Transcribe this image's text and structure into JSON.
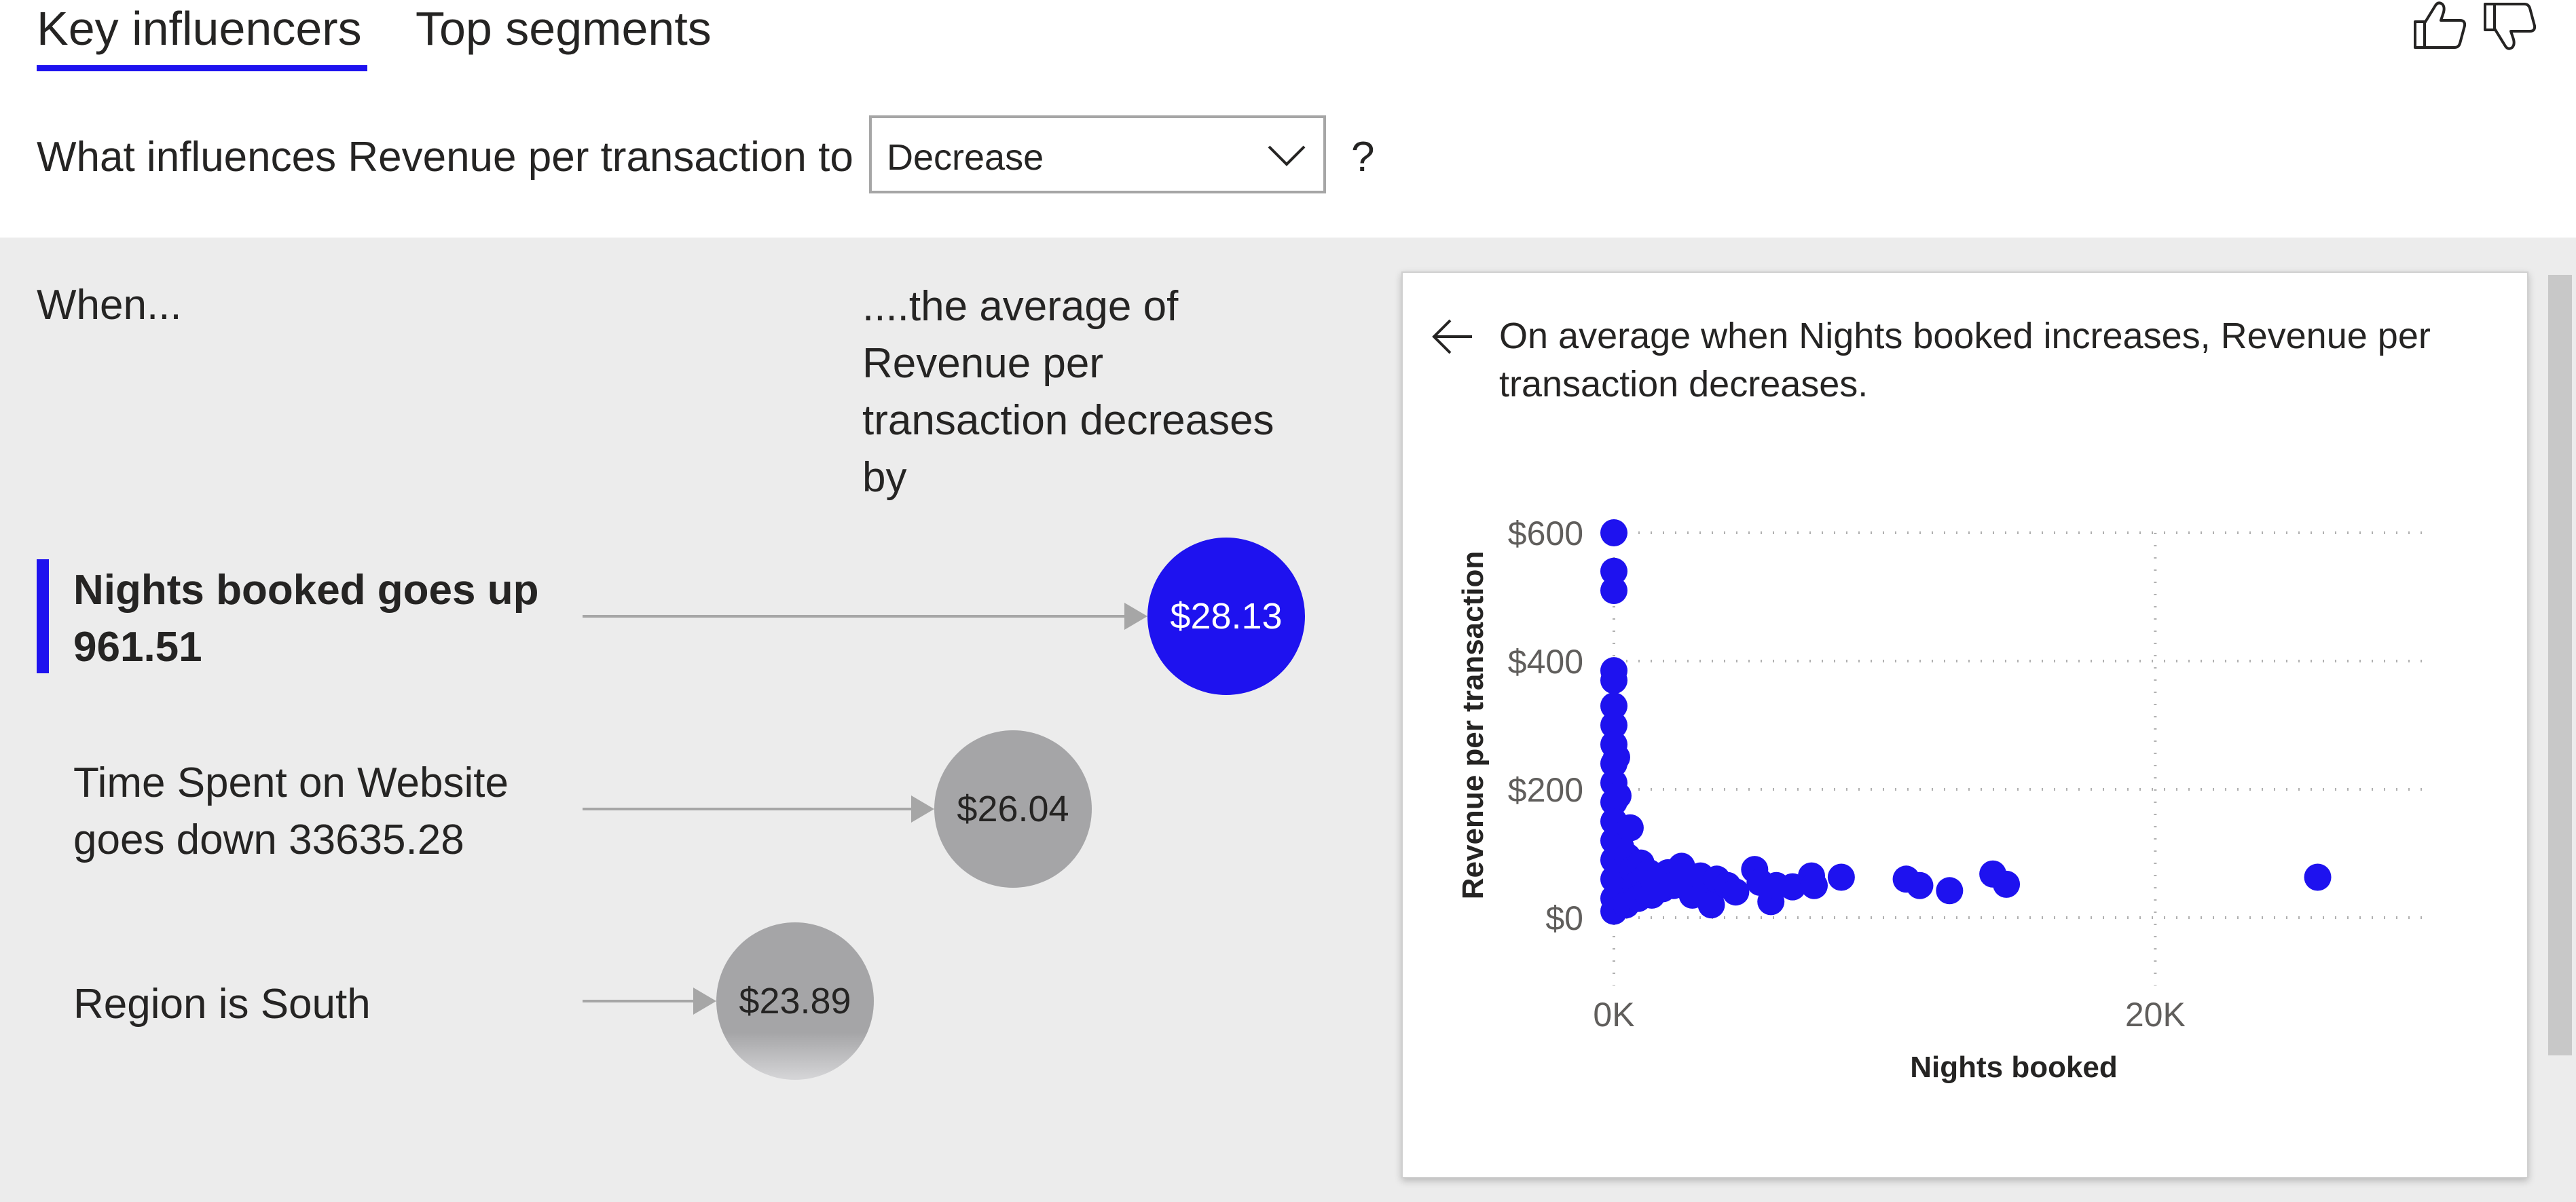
{
  "tabs": {
    "key_influencers": "Key influencers",
    "top_segments": "Top segments"
  },
  "feedback": {
    "thumbs_up_icon": "thumbs-up-icon",
    "thumbs_down_icon": "thumbs-down-icon"
  },
  "question": {
    "prefix": "What influences Revenue per transaction to",
    "selected": "Decrease",
    "suffix": "?"
  },
  "left_panel": {
    "when_heading": "When...",
    "avg_heading": "....the average of Revenue per transaction decreases by"
  },
  "influencers": [
    {
      "label": "Nights booked goes up 961.51",
      "value": "$28.13",
      "amount": 28.13,
      "selected": true
    },
    {
      "label": "Time Spent on Website goes down 33635.28",
      "value": "$26.04",
      "amount": 26.04,
      "selected": false
    },
    {
      "label": "Region is South",
      "value": "$23.89",
      "amount": 23.89,
      "selected": false
    }
  ],
  "detail": {
    "back_icon": "arrow-left-icon",
    "title": "On average when Nights booked increases, Revenue per transaction decreases."
  },
  "colors": {
    "accent": "#1e12ef",
    "bubble_inactive": "#a5a5a7",
    "panel_bg": "#ececec"
  },
  "chart_data": {
    "type": "scatter",
    "xlabel": "Nights booked",
    "ylabel": "Revenue per transaction",
    "x_ticks": [
      {
        "value": 0,
        "label": "0K"
      },
      {
        "value": 20000,
        "label": "20K"
      }
    ],
    "y_ticks": [
      {
        "value": 0,
        "label": "$0"
      },
      {
        "value": 200,
        "label": "$200"
      },
      {
        "value": 400,
        "label": "$400"
      },
      {
        "value": 600,
        "label": "$600"
      }
    ],
    "xlim": [
      0,
      30000
    ],
    "ylim": [
      0,
      600
    ],
    "grid": true,
    "color": "#1e12ef",
    "points": [
      [
        0,
        600
      ],
      [
        0,
        540
      ],
      [
        0,
        510
      ],
      [
        0,
        385
      ],
      [
        0,
        370
      ],
      [
        0,
        330
      ],
      [
        0,
        300
      ],
      [
        0,
        270
      ],
      [
        0,
        240
      ],
      [
        0,
        210
      ],
      [
        0,
        180
      ],
      [
        0,
        150
      ],
      [
        0,
        120
      ],
      [
        0,
        90
      ],
      [
        0,
        60
      ],
      [
        0,
        30
      ],
      [
        0,
        10
      ],
      [
        100,
        250
      ],
      [
        150,
        190
      ],
      [
        200,
        140
      ],
      [
        250,
        110
      ],
      [
        300,
        80
      ],
      [
        350,
        60
      ],
      [
        400,
        40
      ],
      [
        450,
        20
      ],
      [
        600,
        140
      ],
      [
        500,
        95
      ],
      [
        700,
        75
      ],
      [
        800,
        50
      ],
      [
        900,
        30
      ],
      [
        1000,
        85
      ],
      [
        1100,
        60
      ],
      [
        1200,
        40
      ],
      [
        1300,
        70
      ],
      [
        1400,
        35
      ],
      [
        1500,
        55
      ],
      [
        1700,
        65
      ],
      [
        1800,
        45
      ],
      [
        2000,
        70
      ],
      [
        2200,
        50
      ],
      [
        2500,
        80
      ],
      [
        2700,
        55
      ],
      [
        2900,
        35
      ],
      [
        3200,
        65
      ],
      [
        3400,
        45
      ],
      [
        3600,
        20
      ],
      [
        3800,
        60
      ],
      [
        4200,
        50
      ],
      [
        4500,
        40
      ],
      [
        5200,
        75
      ],
      [
        5400,
        55
      ],
      [
        5800,
        25
      ],
      [
        6000,
        50
      ],
      [
        6600,
        48
      ],
      [
        7300,
        65
      ],
      [
        7400,
        50
      ],
      [
        8400,
        63
      ],
      [
        10800,
        60
      ],
      [
        11300,
        50
      ],
      [
        12400,
        42
      ],
      [
        14000,
        68
      ],
      [
        14500,
        52
      ],
      [
        26000,
        63
      ]
    ]
  }
}
